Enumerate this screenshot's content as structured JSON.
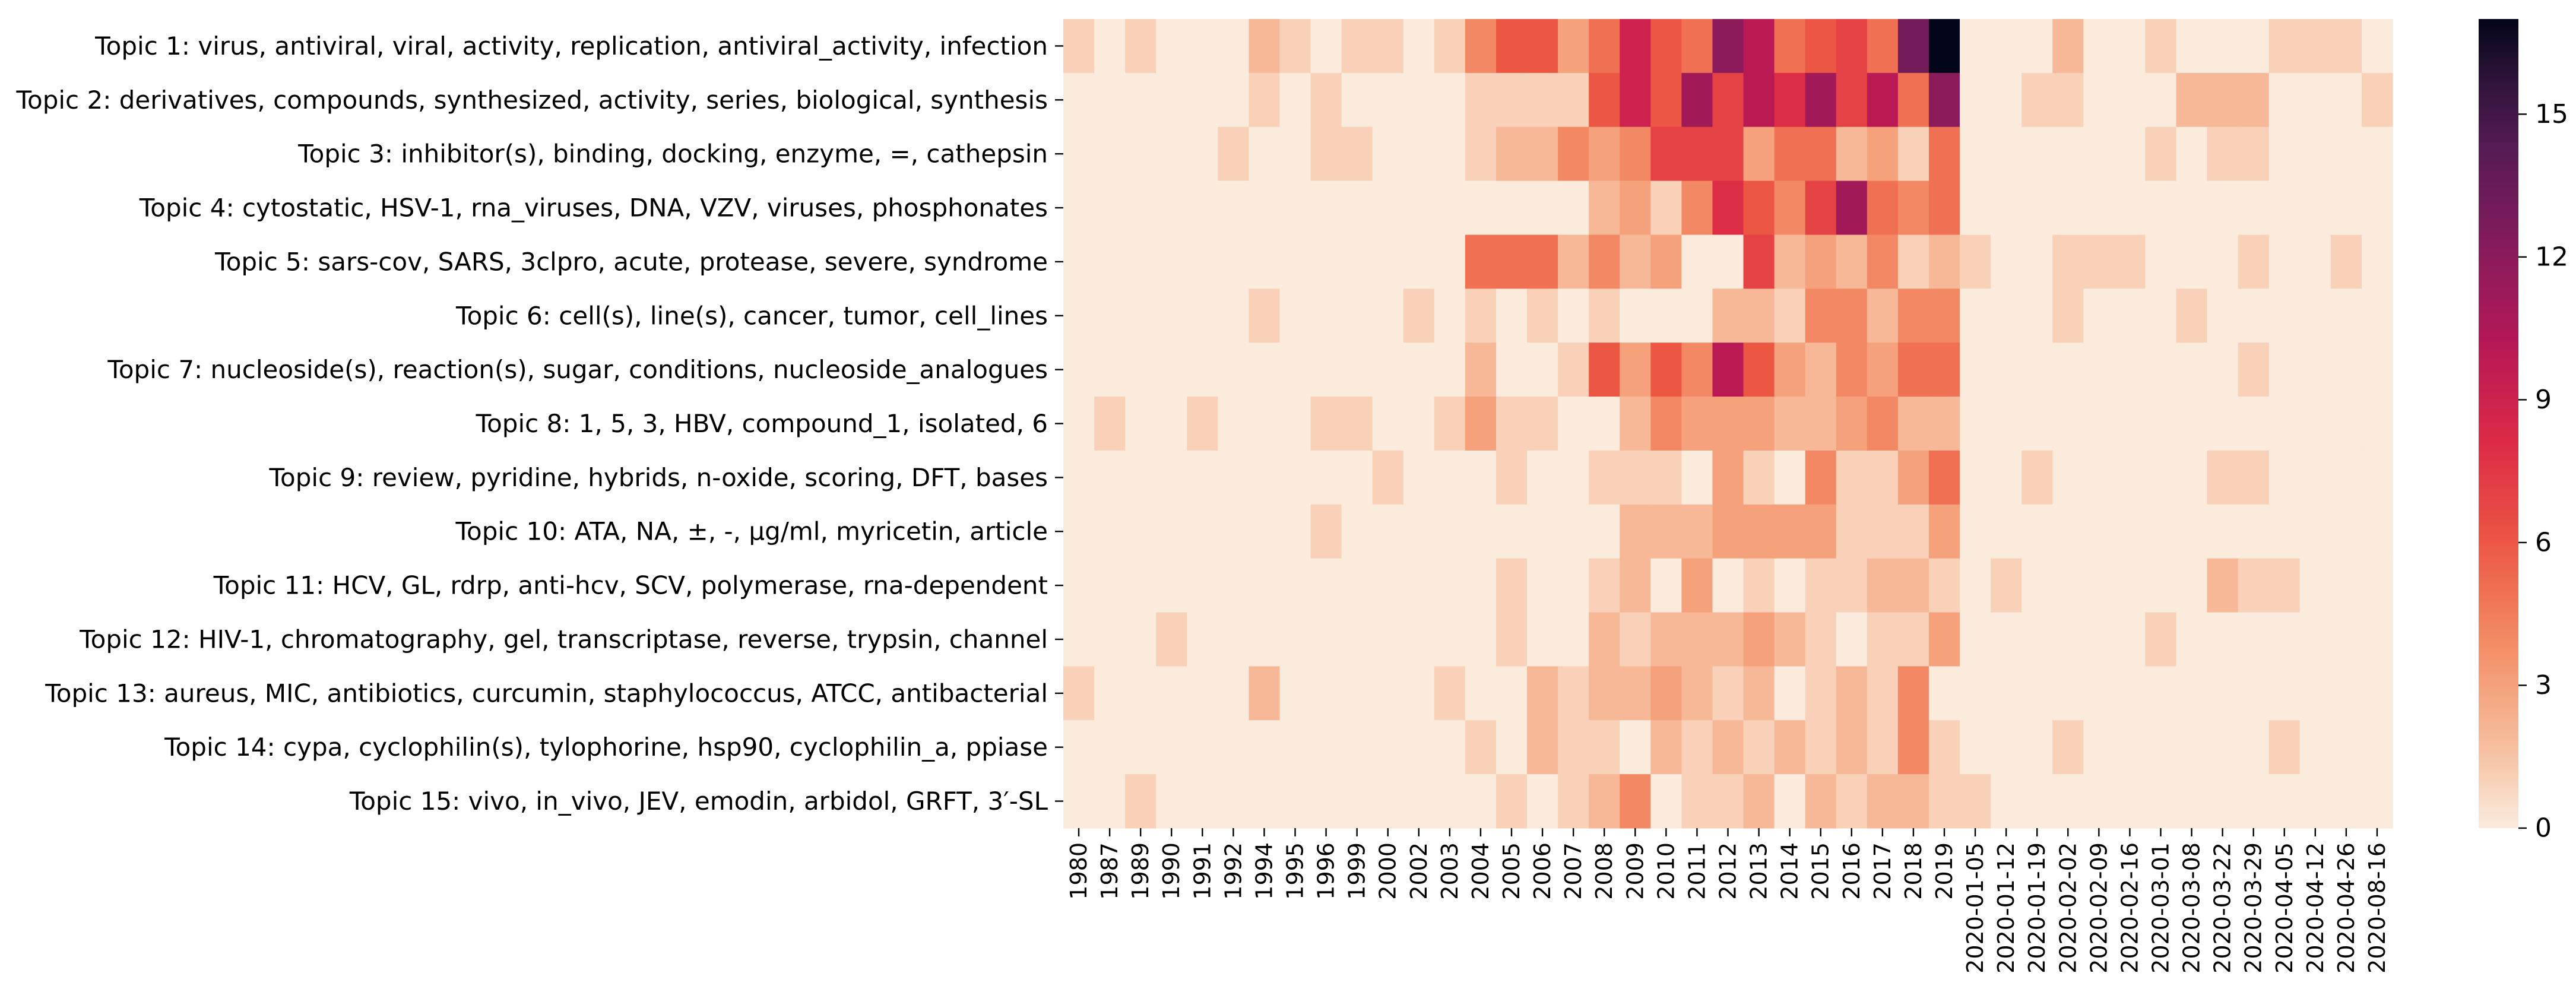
{
  "chart_data": {
    "type": "heatmap",
    "title": "",
    "xlabel": "",
    "ylabel": "",
    "rows": [
      "Topic 1: virus, antiviral, viral, activity, replication, antiviral_activity, infection",
      "Topic 2: derivatives, compounds, synthesized, activity, series, biological, synthesis",
      "Topic 3: inhibitor(s), binding, docking, enzyme, =, cathepsin",
      "Topic 4: cytostatic, HSV-1, rna_viruses, DNA, VZV, viruses, phosphonates",
      "Topic 5: sars-cov, SARS, 3clpro, acute, protease, severe, syndrome",
      "Topic 6: cell(s), line(s), cancer, tumor, cell_lines",
      "Topic 7: nucleoside(s), reaction(s), sugar, conditions, nucleoside_analogues",
      "Topic 8: 1, 5, 3, HBV, compound_1, isolated, 6",
      "Topic 9: review, pyridine, hybrids, n-oxide, scoring, DFT, bases",
      "Topic 10: ATA, NA, ±, -, μg/ml, myricetin, article",
      "Topic 11: HCV, GL, rdrp, anti-hcv, SCV, polymerase, rna-dependent",
      "Topic 12: HIV-1, chromatography, gel, transcriptase, reverse, trypsin, channel",
      "Topic 13: aureus, MIC, antibiotics, curcumin, staphylococcus, ATCC, antibacterial",
      "Topic 14: cypa, cyclophilin(s), tylophorine, hsp90, cyclophilin_a, ppiase",
      "Topic 15: vivo, in_vivo, JEV, emodin, arbidol, GRFT, 3′-SL"
    ],
    "columns": [
      "1980",
      "1987",
      "1989",
      "1990",
      "1991",
      "1992",
      "1994",
      "1995",
      "1996",
      "1999",
      "2000",
      "2002",
      "2003",
      "2004",
      "2005",
      "2006",
      "2007",
      "2008",
      "2009",
      "2010",
      "2011",
      "2012",
      "2013",
      "2014",
      "2015",
      "2016",
      "2017",
      "2018",
      "2019",
      "2020-01-05",
      "2020-01-12",
      "2020-01-19",
      "2020-02-02",
      "2020-02-09",
      "2020-02-16",
      "2020-03-01",
      "2020-03-08",
      "2020-03-22",
      "2020-03-29",
      "2020-04-05",
      "2020-04-12",
      "2020-04-26",
      "2020-08-16"
    ],
    "values": [
      [
        1,
        0,
        1,
        0,
        0,
        0,
        2,
        1,
        0,
        1,
        1,
        0,
        1,
        4,
        6,
        6,
        3,
        5,
        9,
        6,
        5,
        12,
        10,
        5,
        6,
        7,
        5,
        13,
        17,
        0,
        0,
        0,
        2,
        0,
        0,
        1,
        0,
        0,
        0,
        1,
        1,
        1,
        0
      ],
      [
        0,
        0,
        0,
        0,
        0,
        0,
        1,
        0,
        1,
        0,
        0,
        0,
        0,
        1,
        1,
        1,
        1,
        6,
        9,
        6,
        11,
        7,
        10,
        8,
        11,
        7,
        10,
        5,
        12,
        0,
        0,
        1,
        1,
        0,
        0,
        0,
        2,
        2,
        2,
        0,
        0,
        0,
        1
      ],
      [
        0,
        0,
        0,
        0,
        0,
        1,
        0,
        0,
        1,
        1,
        0,
        0,
        0,
        1,
        2,
        2,
        4,
        3,
        4,
        7,
        7,
        7,
        3,
        5,
        5,
        2,
        3,
        1,
        5,
        0,
        0,
        0,
        0,
        0,
        0,
        1,
        0,
        1,
        1,
        0,
        0,
        0,
        0
      ],
      [
        0,
        0,
        0,
        0,
        0,
        0,
        0,
        0,
        0,
        0,
        0,
        0,
        0,
        0,
        0,
        0,
        0,
        2,
        3,
        1,
        4,
        8,
        6,
        4,
        7,
        11,
        5,
        4,
        5,
        0,
        0,
        0,
        0,
        0,
        0,
        0,
        0,
        0,
        0,
        0,
        0,
        0,
        0
      ],
      [
        0,
        0,
        0,
        0,
        0,
        0,
        0,
        0,
        0,
        0,
        0,
        0,
        0,
        5,
        5,
        5,
        2,
        4,
        2,
        3,
        0,
        0,
        7,
        2,
        3,
        2,
        4,
        1,
        2,
        1,
        0,
        0,
        1,
        1,
        1,
        0,
        0,
        0,
        1,
        0,
        0,
        1,
        0
      ],
      [
        0,
        0,
        0,
        0,
        0,
        0,
        1,
        0,
        0,
        0,
        0,
        1,
        0,
        1,
        0,
        1,
        0,
        1,
        0,
        0,
        0,
        2,
        2,
        1,
        4,
        4,
        2,
        4,
        4,
        0,
        0,
        0,
        1,
        0,
        0,
        0,
        1,
        0,
        0,
        0,
        0,
        0,
        0
      ],
      [
        0,
        0,
        0,
        0,
        0,
        0,
        0,
        0,
        0,
        0,
        0,
        0,
        0,
        2,
        0,
        0,
        1,
        6,
        3,
        6,
        4,
        10,
        6,
        3,
        2,
        4,
        3,
        5,
        5,
        0,
        0,
        0,
        0,
        0,
        0,
        0,
        0,
        0,
        1,
        0,
        0,
        0,
        0
      ],
      [
        0,
        1,
        0,
        0,
        1,
        0,
        0,
        0,
        1,
        1,
        0,
        0,
        1,
        3,
        1,
        1,
        0,
        0,
        2,
        4,
        3,
        3,
        3,
        2,
        2,
        3,
        4,
        2,
        2,
        0,
        0,
        0,
        0,
        0,
        0,
        0,
        0,
        0,
        0,
        0,
        0,
        0,
        0
      ],
      [
        0,
        0,
        0,
        0,
        0,
        0,
        0,
        0,
        0,
        0,
        1,
        0,
        0,
        0,
        1,
        0,
        0,
        1,
        1,
        1,
        0,
        3,
        1,
        0,
        4,
        1,
        1,
        3,
        5,
        0,
        0,
        1,
        0,
        0,
        0,
        0,
        0,
        1,
        1,
        0,
        0,
        0,
        0
      ],
      [
        0,
        0,
        0,
        0,
        0,
        0,
        0,
        0,
        1,
        0,
        0,
        0,
        0,
        0,
        0,
        0,
        0,
        0,
        2,
        2,
        2,
        3,
        3,
        3,
        3,
        1,
        1,
        1,
        3,
        0,
        0,
        0,
        0,
        0,
        0,
        0,
        0,
        0,
        0,
        0,
        0,
        0,
        0
      ],
      [
        0,
        0,
        0,
        0,
        0,
        0,
        0,
        0,
        0,
        0,
        0,
        0,
        0,
        0,
        1,
        0,
        0,
        1,
        2,
        0,
        3,
        0,
        1,
        0,
        1,
        1,
        2,
        2,
        1,
        0,
        1,
        0,
        0,
        0,
        0,
        0,
        0,
        2,
        1,
        1,
        0,
        0,
        0
      ],
      [
        0,
        0,
        0,
        1,
        0,
        0,
        0,
        0,
        0,
        0,
        0,
        0,
        0,
        0,
        1,
        0,
        0,
        2,
        1,
        2,
        2,
        2,
        3,
        2,
        1,
        0,
        1,
        1,
        3,
        0,
        0,
        0,
        0,
        0,
        0,
        1,
        0,
        0,
        0,
        0,
        0,
        0,
        0
      ],
      [
        1,
        0,
        0,
        0,
        0,
        0,
        2,
        0,
        0,
        0,
        0,
        0,
        1,
        0,
        0,
        2,
        1,
        2,
        2,
        3,
        2,
        1,
        2,
        0,
        1,
        2,
        1,
        4,
        0,
        0,
        0,
        0,
        0,
        0,
        0,
        0,
        0,
        0,
        0,
        0,
        0,
        0,
        0
      ],
      [
        0,
        0,
        0,
        0,
        0,
        0,
        0,
        0,
        0,
        0,
        0,
        0,
        0,
        1,
        0,
        2,
        1,
        1,
        0,
        2,
        1,
        2,
        1,
        2,
        1,
        2,
        1,
        4,
        1,
        0,
        0,
        0,
        1,
        0,
        0,
        0,
        0,
        0,
        0,
        1,
        0,
        0,
        0
      ],
      [
        0,
        0,
        1,
        0,
        0,
        0,
        0,
        0,
        0,
        0,
        0,
        0,
        0,
        0,
        1,
        0,
        1,
        2,
        4,
        0,
        1,
        1,
        2,
        0,
        2,
        1,
        2,
        2,
        1,
        1,
        0,
        0,
        0,
        0,
        0,
        0,
        0,
        0,
        0,
        0,
        0,
        0,
        0
      ]
    ],
    "vmin": 0,
    "vmax": 17,
    "colormap": "rocket_r",
    "colorbar": {
      "ticks": [
        0,
        3,
        6,
        9,
        12,
        15
      ]
    }
  }
}
